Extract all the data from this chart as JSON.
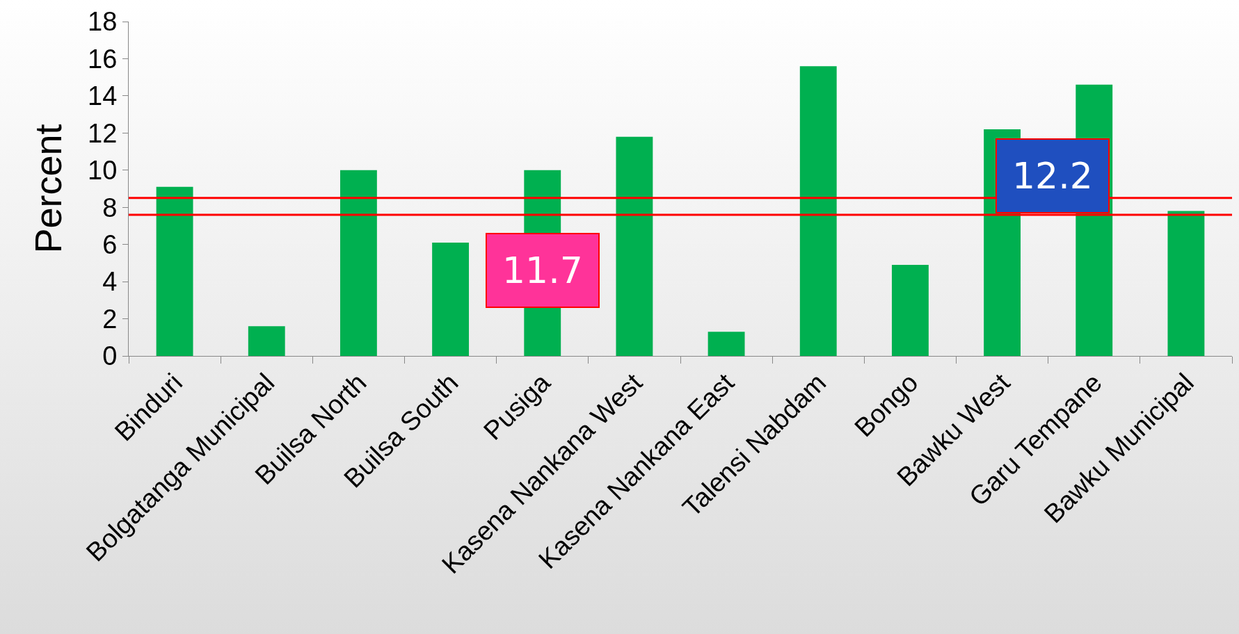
{
  "chart_data": {
    "type": "bar",
    "ylabel": "Percent",
    "categories": [
      "Binduri",
      "Bolgatanga Municipal",
      "Builsa North",
      "Builsa South",
      "Pusiga",
      "Kasena Nankana West",
      "Kasena Nankana East",
      "Talensi Nabdam",
      "Bongo",
      "Bawku West",
      "Garu Tempane",
      "Bawku Municipal"
    ],
    "values": [
      9.1,
      1.6,
      10.0,
      6.1,
      10.0,
      11.8,
      1.3,
      15.6,
      4.9,
      12.2,
      14.6,
      7.8
    ],
    "color": "#00b050",
    "ylim": [
      0,
      18
    ],
    "yticks": [
      0,
      2,
      4,
      6,
      8,
      10,
      12,
      14,
      16,
      18
    ],
    "grid": false,
    "legend": false,
    "ref_lines": [
      {
        "axis": "y",
        "value": 8.5,
        "color": "#ff0000"
      },
      {
        "axis": "y",
        "value": 7.6,
        "color": "#ff0000"
      }
    ],
    "annotations": [
      "11.7",
      "12.2"
    ]
  }
}
